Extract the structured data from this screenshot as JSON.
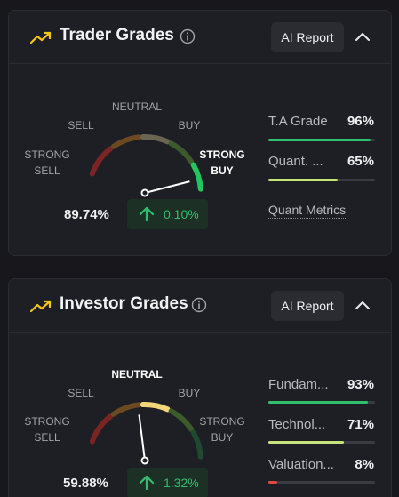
{
  "trader": {
    "title": "Trader Grades",
    "ai_report": "AI Report",
    "gauge": {
      "strong_sell": [
        "STRONG",
        "SELL"
      ],
      "sell": "SELL",
      "neutral": "NEUTRAL",
      "buy": "BUY",
      "strong_buy": [
        "STRONG",
        "BUY"
      ],
      "active": "strong_buy",
      "needle_fraction": 0.92
    },
    "score": "89.74%",
    "change": "0.10%",
    "metrics": [
      {
        "name": "T.A Grade",
        "value": "96%",
        "fill": 0.96,
        "color": "#2fbf6e"
      },
      {
        "name": "Quant. ...",
        "value": "65%",
        "fill": 0.65,
        "color": "#c6e47a"
      }
    ],
    "link": "Quant Metrics"
  },
  "investor": {
    "title": "Investor Grades",
    "ai_report": "AI Report",
    "gauge": {
      "strong_sell": [
        "STRONG",
        "SELL"
      ],
      "sell": "SELL",
      "neutral": "NEUTRAL",
      "buy": "BUY",
      "strong_buy": [
        "STRONG",
        "BUY"
      ],
      "active": "neutral",
      "needle_fraction": 0.46
    },
    "score": "59.88%",
    "change": "1.32%",
    "metrics": [
      {
        "name": "Fundam...",
        "value": "93%",
        "fill": 0.93,
        "color": "#2fbf6e"
      },
      {
        "name": "Technol...",
        "value": "71%",
        "fill": 0.71,
        "color": "#c6e47a"
      },
      {
        "name": "Valuation...",
        "value": "8%",
        "fill": 0.08,
        "color": "#e8453c"
      }
    ]
  },
  "colors": {
    "strong_sell": "#7a2424",
    "sell": "#6b4a22",
    "neutral": "#6a6450",
    "buy": "#3d5a2a",
    "strong_buy": "#1e4a30",
    "strong_sell_active": "#c0392b",
    "sell_active": "#c97a2b",
    "neutral_active": "#f3d67a",
    "buy_active": "#7fb042",
    "strong_buy_active": "#22c55e",
    "accent": "#f5c518"
  }
}
